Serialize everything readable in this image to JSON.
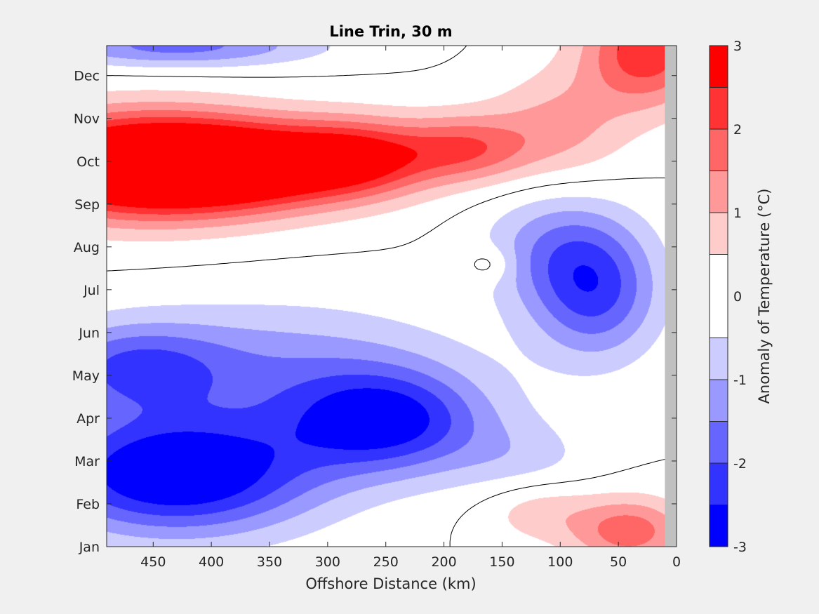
{
  "chart_data": {
    "type": "heatmap",
    "title": "Line Trin, 30 m",
    "xlabel": "Offshore Distance (km)",
    "ylabel": "",
    "colorbar_label": "Anomaly of Temperature (°C)",
    "x_axis": {
      "range": [
        490,
        0
      ],
      "reversed": true,
      "ticks": [
        450,
        400,
        350,
        300,
        250,
        200,
        150,
        100,
        50,
        0
      ],
      "tick_labels": [
        "450",
        "400",
        "350",
        "300",
        "250",
        "200",
        "150",
        "100",
        "50",
        "0"
      ]
    },
    "y_axis": {
      "range": [
        0,
        11.7
      ],
      "ticks": [
        0,
        1,
        2,
        3,
        4,
        5,
        6,
        7,
        8,
        9,
        10,
        11
      ],
      "tick_labels": [
        "Jan",
        "Feb",
        "Mar",
        "Apr",
        "May",
        "Jun",
        "Jul",
        "Aug",
        "Sep",
        "Oct",
        "Nov",
        "Dec"
      ]
    },
    "colorbar": {
      "range": [
        -3,
        3
      ],
      "ticks": [
        3,
        2,
        1,
        0,
        -1,
        -2,
        -3
      ],
      "tick_labels": [
        "3",
        "2",
        "1",
        "0",
        "-1",
        "-2",
        "-3"
      ],
      "levels": [
        -3,
        -2.5,
        -2,
        -1.5,
        -1,
        -0.5,
        0.5,
        1,
        1.5,
        2,
        2.5,
        3
      ],
      "colors": [
        "#0000ff",
        "#3333ff",
        "#6666ff",
        "#9999ff",
        "#ccccff",
        "#ffffff",
        "#ffcccc",
        "#ff9999",
        "#ff6666",
        "#ff3333",
        "#ff0000"
      ]
    },
    "no_data_region_km": [
      0,
      10
    ],
    "no_data_color": "#c0c0c0",
    "contour_lines": [
      0
    ]
  }
}
